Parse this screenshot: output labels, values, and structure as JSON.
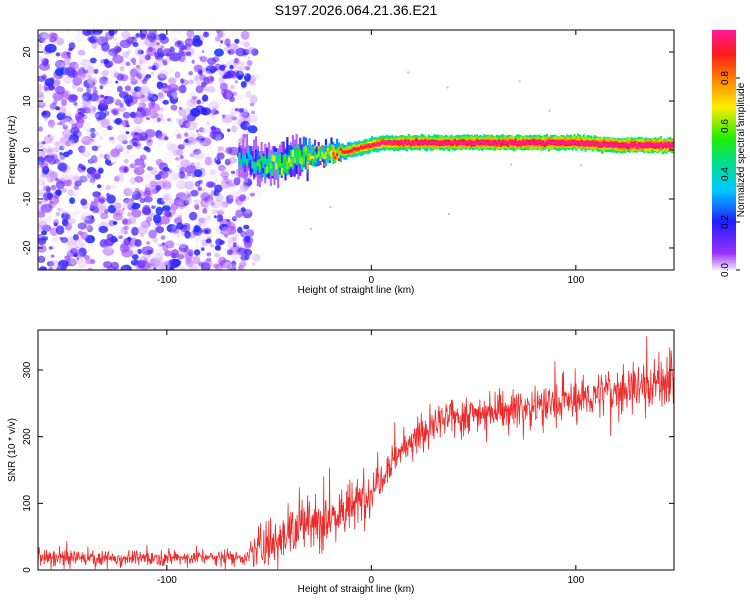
{
  "title": "S197.2026.064.21.36.E21",
  "colors": {
    "snr_line": "#ee2b2b",
    "spectro_noise": "#9a4ef0"
  },
  "chart_data": [
    {
      "type": "heatmap",
      "name": "spectrogram",
      "xlabel": "Height of straight line (km)",
      "ylabel": "Frequency (Hz)",
      "xlim": [
        -163,
        148
      ],
      "ylim": [
        -24.5,
        24.5
      ],
      "xticks": [
        -100,
        0,
        100
      ],
      "xtick_labels": [
        "-100",
        "0",
        "100"
      ],
      "yticks": [
        -20,
        -10,
        0,
        10,
        20
      ],
      "ytick_labels": [
        "-20",
        "-10",
        "0",
        "10",
        "20"
      ],
      "colorbar": {
        "label": "Normalized spectral amplitude",
        "range": [
          0,
          1
        ],
        "ticks": [
          0,
          0.2,
          0.4,
          0.6,
          0.8
        ],
        "tick_labels": [
          "0.0",
          "0.2",
          "0.4",
          "0.6",
          "0.8"
        ],
        "colormap": "rainbow (violet-blue-cyan-green-yellow-red-magenta)"
      },
      "noise_region_km": [
        -163,
        -60
      ],
      "signal_trace": {
        "x": [
          -65,
          -55,
          -45,
          -35,
          -25,
          -15,
          -5,
          5,
          20,
          40,
          60,
          80,
          100,
          120,
          148
        ],
        "freq": [
          -2,
          -3,
          -2.5,
          -1.5,
          -1,
          -0.5,
          0.5,
          1.5,
          1.5,
          1.5,
          1.5,
          1.5,
          1.5,
          1,
          1
        ],
        "strength": [
          0.35,
          0.45,
          0.55,
          0.6,
          0.7,
          0.75,
          0.8,
          0.85,
          0.9,
          0.9,
          0.92,
          0.92,
          0.93,
          0.93,
          0.95
        ]
      }
    },
    {
      "type": "line",
      "name": "snr",
      "xlabel": "Height of straight line (km)",
      "ylabel": "SNR (10 * v/v)",
      "xlim": [
        -163,
        148
      ],
      "ylim": [
        0,
        360
      ],
      "xticks": [
        -100,
        0,
        100
      ],
      "xtick_labels": [
        "-100",
        "0",
        "100"
      ],
      "yticks": [
        0,
        100,
        200,
        300
      ],
      "ytick_labels": [
        "0",
        "100",
        "200",
        "300"
      ],
      "series": [
        {
          "name": "SNR",
          "color": "#ee2b2b",
          "trend_x": [
            -163,
            -120,
            -80,
            -60,
            -52,
            -40,
            -30,
            -20,
            -10,
            0,
            10,
            20,
            30,
            40,
            60,
            80,
            100,
            120,
            148
          ],
          "trend_y": [
            18,
            18,
            19,
            20,
            40,
            60,
            70,
            80,
            90,
            120,
            165,
            195,
            215,
            230,
            240,
            245,
            255,
            270,
            285
          ],
          "noise_amplitude": [
            10,
            10,
            10,
            10,
            35,
            40,
            40,
            40,
            35,
            30,
            25,
            25,
            25,
            25,
            25,
            25,
            28,
            30,
            35
          ]
        }
      ]
    }
  ]
}
